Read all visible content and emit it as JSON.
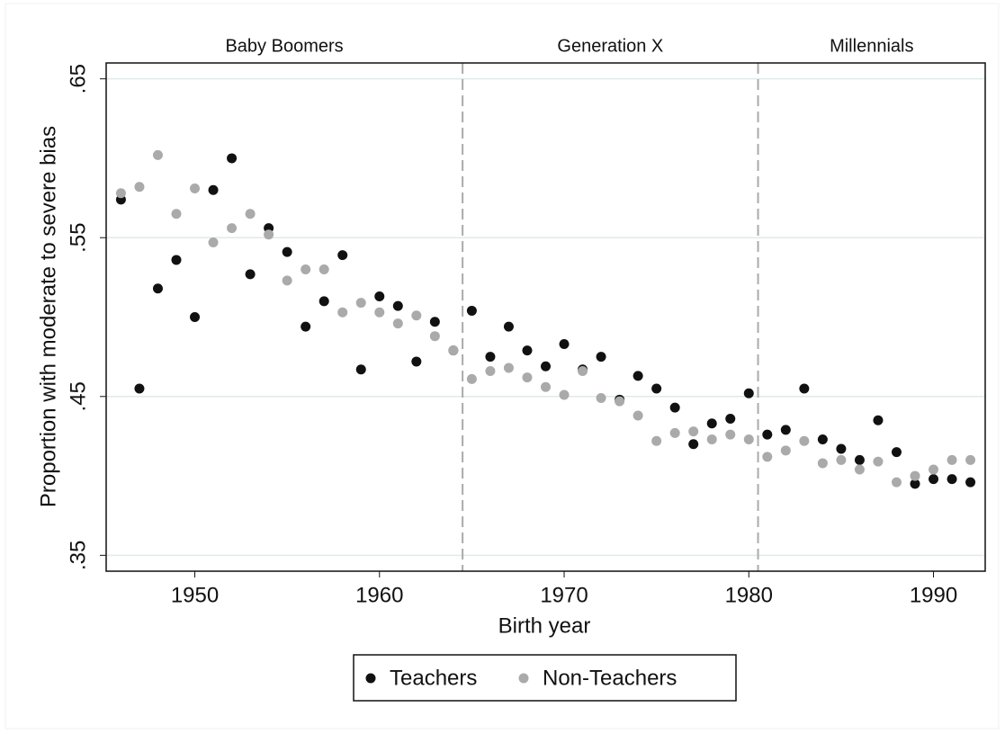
{
  "chart_data": {
    "type": "scatter",
    "x_label": "Birth year",
    "y_label": "Proportion with moderate to severe bias",
    "x": [
      1946,
      1947,
      1948,
      1949,
      1950,
      1951,
      1952,
      1953,
      1954,
      1955,
      1956,
      1957,
      1958,
      1959,
      1960,
      1961,
      1962,
      1963,
      1964,
      1965,
      1966,
      1967,
      1968,
      1969,
      1970,
      1971,
      1972,
      1973,
      1974,
      1975,
      1976,
      1977,
      1978,
      1979,
      1980,
      1981,
      1982,
      1983,
      1984,
      1985,
      1986,
      1987,
      1988,
      1989,
      1990,
      1991,
      1992
    ],
    "series": [
      {
        "name": "Teachers",
        "color": "#111111",
        "values": [
          0.574,
          0.455,
          0.518,
          0.536,
          0.5,
          0.58,
          0.6,
          0.527,
          0.556,
          0.541,
          0.494,
          0.51,
          0.539,
          0.467,
          0.513,
          0.507,
          0.472,
          0.497,
          0.479,
          0.504,
          0.475,
          0.494,
          0.479,
          0.469,
          0.483,
          0.467,
          0.475,
          0.448,
          0.463,
          0.455,
          0.443,
          0.42,
          0.433,
          0.436,
          0.452,
          0.426,
          0.429,
          0.455,
          0.423,
          0.417,
          0.41,
          0.435,
          0.415,
          0.395,
          0.398,
          0.398,
          0.396
        ]
      },
      {
        "name": "Non-Teachers",
        "color": "#aaaaaa",
        "values": [
          0.578,
          0.582,
          0.602,
          0.565,
          0.581,
          0.547,
          0.556,
          0.565,
          0.552,
          0.523,
          0.53,
          0.53,
          0.503,
          0.509,
          0.503,
          0.496,
          0.501,
          0.488,
          0.479,
          0.461,
          0.466,
          0.468,
          0.462,
          0.456,
          0.451,
          0.466,
          0.449,
          0.447,
          0.438,
          0.422,
          0.427,
          0.428,
          0.423,
          0.426,
          0.423,
          0.412,
          0.416,
          0.422,
          0.408,
          0.41,
          0.404,
          0.409,
          0.396,
          0.4,
          0.404,
          0.41,
          0.41
        ]
      }
    ],
    "xlim": [
      1945.2,
      1992.8
    ],
    "ylim": [
      0.34,
      0.66
    ],
    "xticks": [
      1950,
      1960,
      1970,
      1980,
      1990
    ],
    "yticks": [
      {
        "value": 0.35,
        "label": ".35"
      },
      {
        "value": 0.45,
        "label": ".45"
      },
      {
        "value": 0.55,
        "label": ".55"
      },
      {
        "value": 0.65,
        "label": ".65"
      }
    ],
    "grid": true,
    "dividers": [
      1964.5,
      1980.5
    ],
    "periods": [
      "Baby Boomers",
      "Generation X",
      "Millennials"
    ],
    "legend": "bottom"
  }
}
